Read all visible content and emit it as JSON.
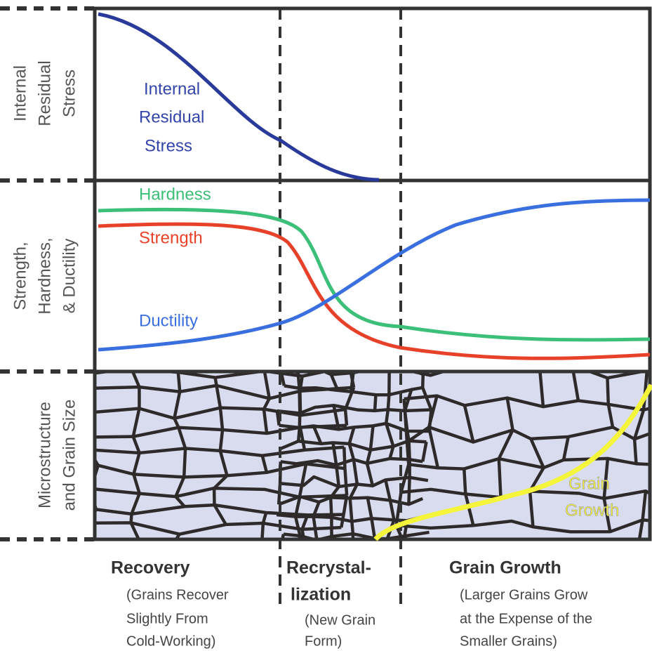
{
  "panels": [
    {
      "label_lines": [
        "Internal",
        "Residual",
        "Stress"
      ]
    },
    {
      "label_lines": [
        "Strength,",
        "Hardness,",
        "& Ductility"
      ]
    },
    {
      "label_lines": [
        "Microstructure",
        "and Grain Size"
      ]
    }
  ],
  "curves": {
    "stress": {
      "label_lines": [
        "Internal",
        "Residual",
        "Stress"
      ]
    },
    "hardness": {
      "label": "Hardness"
    },
    "strength": {
      "label": "Strength"
    },
    "ductility": {
      "label": "Ductility"
    },
    "grain_growth": {
      "label_lines": [
        "Grain",
        "Growth"
      ]
    }
  },
  "stages": [
    {
      "title_lines": [
        "Recovery"
      ],
      "description_lines": [
        "(Grains Recover",
        "Slightly From",
        "Cold-Working)"
      ]
    },
    {
      "title_lines": [
        "Recrystal-",
        "lization"
      ],
      "description_lines": [
        "(New Grain",
        "Form)"
      ]
    },
    {
      "title_lines": [
        "Grain Growth"
      ],
      "description_lines": [
        "(Larger Grains Grow",
        "at the Expense of the",
        "Smaller Grains)"
      ]
    }
  ]
}
